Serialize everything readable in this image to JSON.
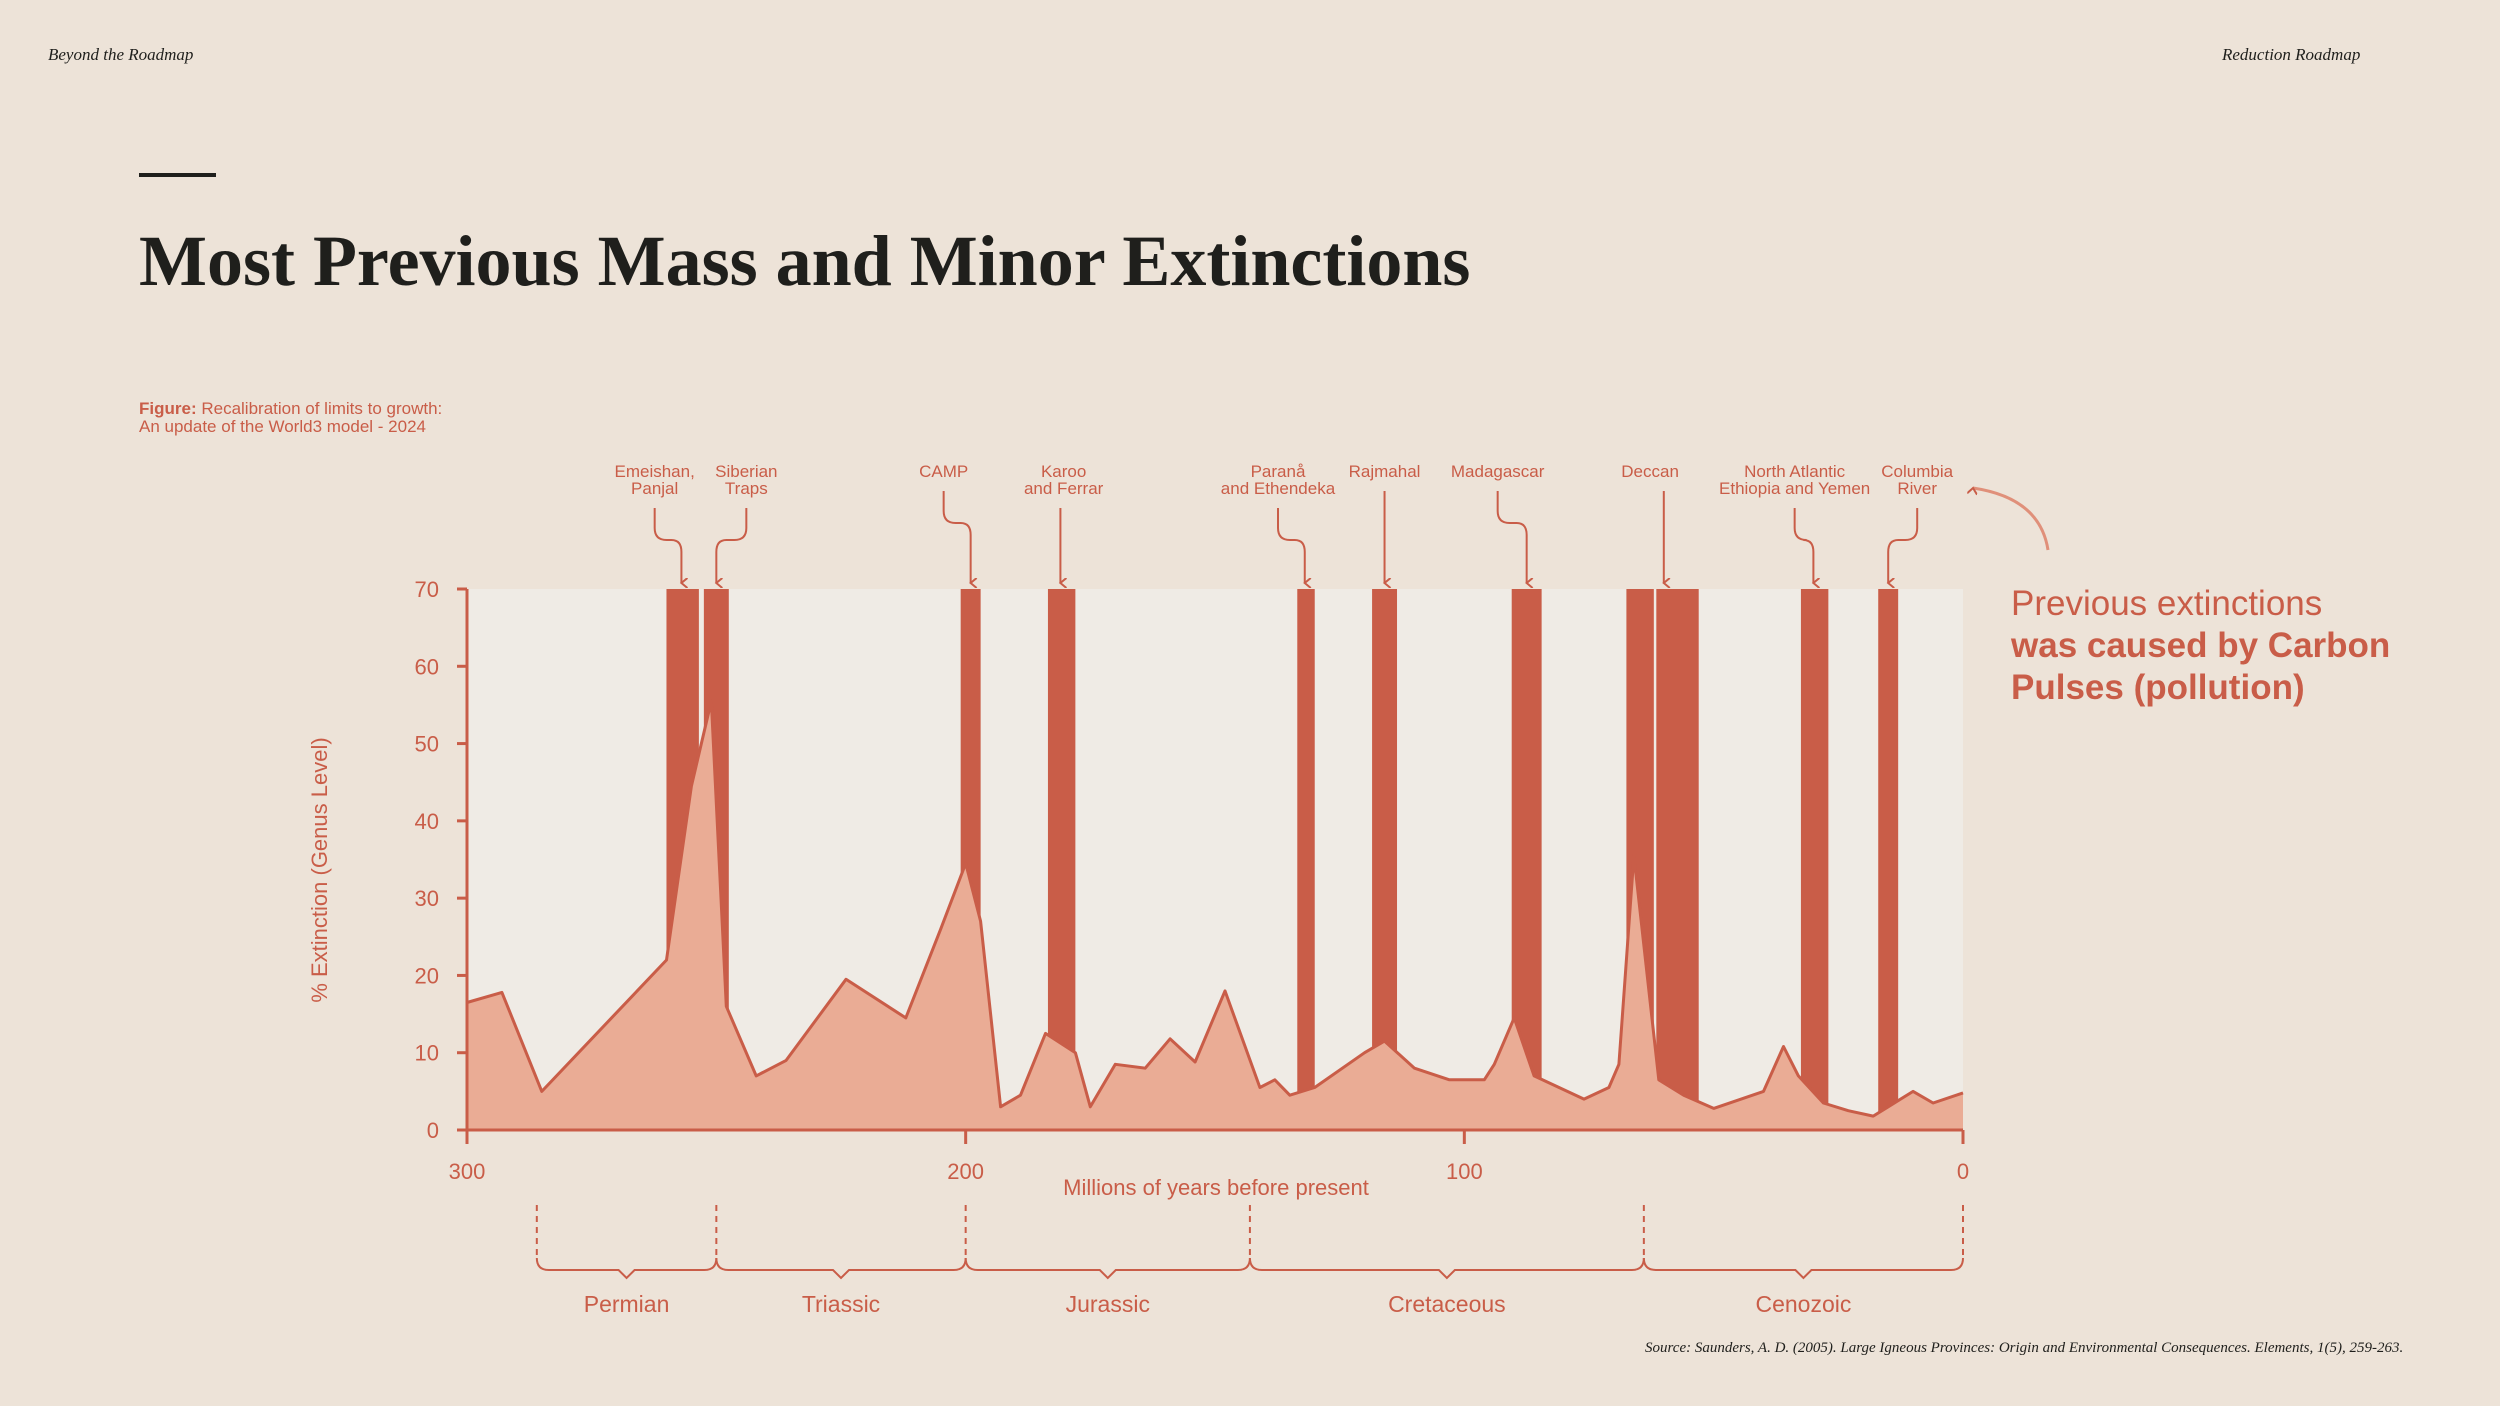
{
  "header": {
    "left": "Beyond the Roadmap",
    "right": "Reduction Roadmap"
  },
  "title": "Most Previous Mass and Minor Extinctions",
  "figure_caption": {
    "label": "Figure:",
    "line1": "Recalibration of limits to growth:",
    "line2": "An update of the World3 model - 2024"
  },
  "callout": {
    "line1": "Previous extinctions",
    "line2": "was caused by Carbon",
    "line3": "Pulses (pollution)"
  },
  "source": "Source: Saunders, A. D. (2005). Large Igneous Provinces: Origin and Environmental Consequences. Elements, 1(5), 259-263.",
  "colors": {
    "background": "#ede3d8",
    "plot_background": "#efebe5",
    "accent": "#c95d48",
    "area_fill": "#eaac95",
    "text_dark": "#1f1f1c"
  },
  "chart_data": {
    "type": "area",
    "xlabel": "Millions of years before present",
    "ylabel": "% Extinction (Genus Level)",
    "xlim": [
      300,
      0
    ],
    "ylim": [
      0,
      70
    ],
    "x_ticks": [
      300,
      200,
      100,
      0
    ],
    "y_ticks": [
      0,
      10,
      20,
      30,
      40,
      50,
      60,
      70
    ],
    "series": [
      {
        "x": [
          300,
          293,
          285,
          260,
          255,
          251,
          248,
          242,
          236,
          224,
          212,
          205,
          200,
          197,
          193,
          189,
          184,
          178,
          175,
          170,
          164,
          159,
          154,
          148,
          141,
          138,
          135,
          130,
          120,
          116,
          110,
          103,
          96,
          94,
          90,
          86,
          76,
          71,
          69,
          66,
          61,
          56,
          50,
          40,
          36,
          33,
          28,
          23,
          18,
          15,
          10,
          6,
          0
        ],
        "y": [
          16.5,
          17.8,
          5,
          22,
          44.5,
          55.5,
          16,
          7,
          9,
          19.5,
          14.5,
          26,
          34.5,
          27,
          3,
          4.5,
          12.5,
          10,
          3,
          8.5,
          8,
          11.8,
          8.8,
          18,
          5.5,
          6.5,
          4.5,
          5.5,
          10,
          11.5,
          8,
          6.5,
          6.5,
          8.5,
          14.5,
          7,
          4,
          5.5,
          8.5,
          35.5,
          6.5,
          4.5,
          2.8,
          5,
          10.8,
          7,
          3.5,
          2.5,
          1.8,
          3,
          5,
          3.5,
          4.8
        ]
      }
    ],
    "events": [
      {
        "label": "Emeishan,\nPanjal",
        "from": 260,
        "to": 253.5,
        "arrow_at": 257
      },
      {
        "label": "Siberian\nTraps",
        "from": 252.5,
        "to": 247.5,
        "arrow_at": 250
      },
      {
        "label": "CAMP",
        "from": 201,
        "to": 197,
        "arrow_at": 199
      },
      {
        "label": "Karoo\nand Ferrar",
        "from": 183.5,
        "to": 178,
        "arrow_at": 181
      },
      {
        "label": "Paranå\nand Ethendeka",
        "from": 133.5,
        "to": 130,
        "arrow_at": 132
      },
      {
        "label": "Rajmahal",
        "from": 118.5,
        "to": 113.5,
        "arrow_at": 116
      },
      {
        "label": "Madagascar",
        "from": 90.5,
        "to": 84.5,
        "arrow_at": 87.5
      },
      {
        "label": "Deccan",
        "from": 67.5,
        "to": 62,
        "arrow_at": null
      },
      {
        "label": "",
        "from": 61.5,
        "to": 53,
        "arrow_at": 60
      },
      {
        "label": "North Atlantic\nEthiopia and Yemen",
        "from": 32.5,
        "to": 27,
        "arrow_at": 30
      },
      {
        "label": "Columbia\nRiver",
        "from": 17,
        "to": 13,
        "arrow_at": 15
      }
    ],
    "periods": [
      {
        "name": "Permian",
        "from": 286,
        "to": 250
      },
      {
        "name": "Triassic",
        "from": 250,
        "to": 200
      },
      {
        "name": "Jurassic",
        "from": 200,
        "to": 143
      },
      {
        "name": "Cretaceous",
        "from": 143,
        "to": 64
      },
      {
        "name": "Cenozoic",
        "from": 64,
        "to": 0
      }
    ]
  }
}
